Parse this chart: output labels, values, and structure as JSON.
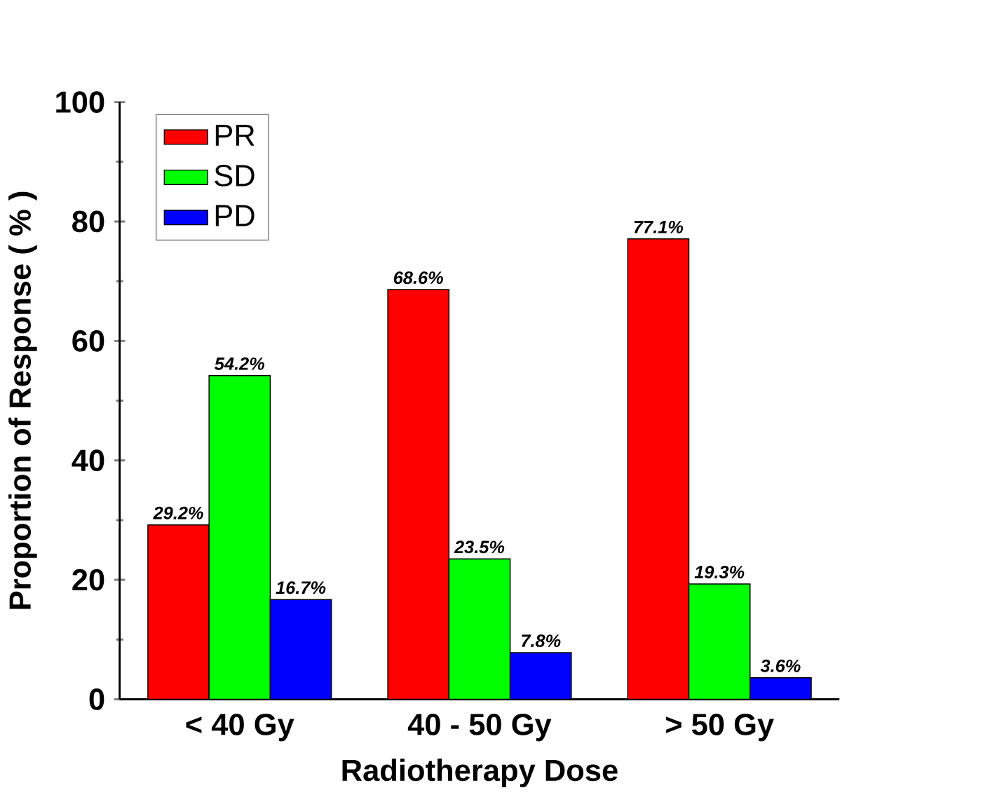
{
  "chart_data": {
    "type": "bar",
    "xlabel": "Radiotherapy Dose",
    "ylabel": "Proportion of Response ( % )",
    "categories": [
      "< 40 Gy",
      "40 - 50 Gy",
      "> 50 Gy"
    ],
    "series": [
      {
        "name": "PR",
        "color": "#ff0000",
        "values": [
          29.2,
          68.6,
          77.1
        ],
        "value_labels": [
          "29.2%",
          "68.6%",
          "77.1%"
        ]
      },
      {
        "name": "SD",
        "color": "#00ff00",
        "values": [
          54.2,
          23.5,
          19.3
        ],
        "value_labels": [
          "54.2%",
          "23.5%",
          "19.3%"
        ]
      },
      {
        "name": "PD",
        "color": "#0000ff",
        "values": [
          16.7,
          7.8,
          3.6
        ],
        "value_labels": [
          "16.7%",
          "7.8%",
          "3.6%"
        ]
      }
    ],
    "ylim": [
      0,
      100
    ],
    "yticks": [
      0,
      20,
      40,
      60,
      80,
      100
    ],
    "legend": "top left",
    "grid": false
  }
}
